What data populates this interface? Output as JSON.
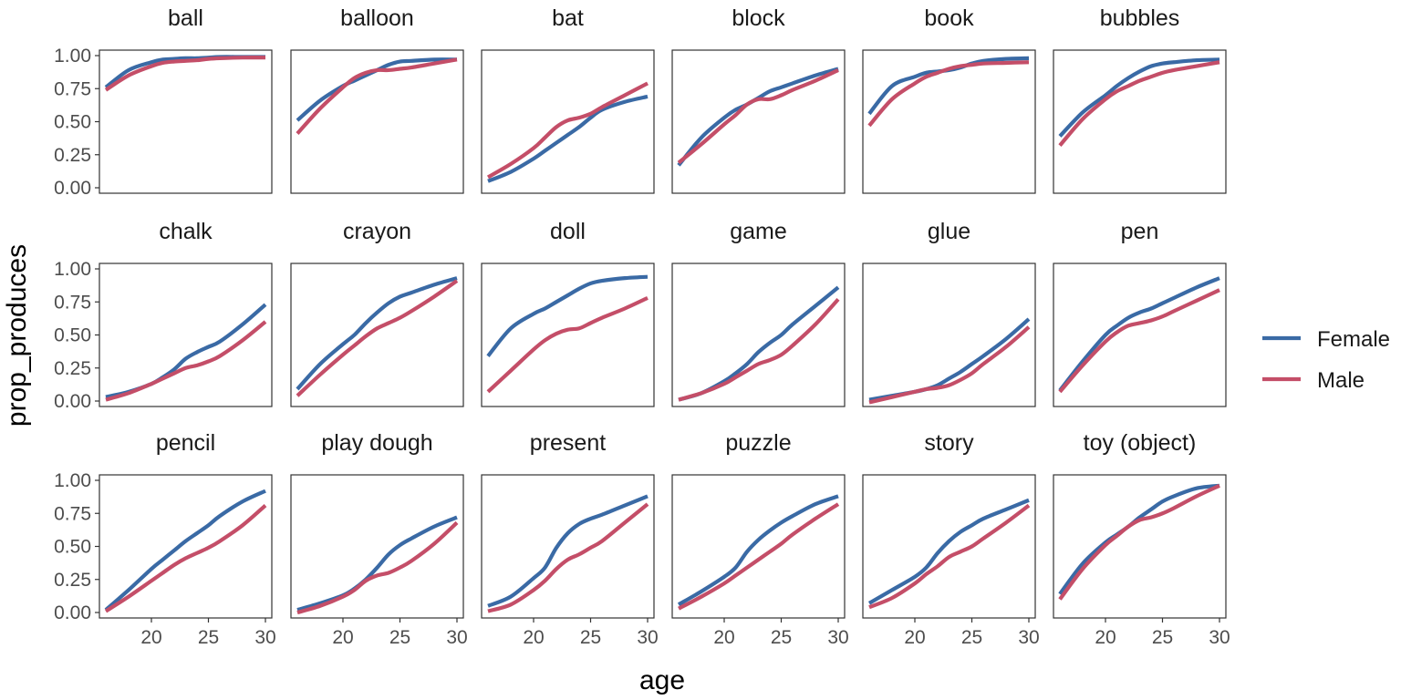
{
  "chart_data": {
    "type": "line",
    "xlabel": "age",
    "ylabel": "prop_produces",
    "xlim": [
      16,
      30
    ],
    "ylim": [
      0,
      1
    ],
    "x_ticks": [
      20,
      25,
      30
    ],
    "y_ticks": [
      0,
      0.25,
      0.5,
      0.75,
      1
    ],
    "y_tick_labels": [
      "0.00",
      "0.25",
      "0.50",
      "0.75",
      "1.00"
    ],
    "grid": false,
    "legend_position": "right",
    "legend": [
      {
        "name": "Female",
        "color": "#3a6aa5"
      },
      {
        "name": "Male",
        "color": "#c44e68"
      }
    ],
    "x": [
      16,
      18,
      20,
      21,
      22,
      23,
      24,
      25,
      26,
      28,
      30
    ],
    "panels": [
      {
        "title": "ball",
        "series": [
          {
            "name": "Female",
            "values": [
              0.76,
              0.89,
              0.95,
              0.97,
              0.975,
              0.98,
              0.98,
              0.985,
              0.99,
              0.99,
              0.99
            ]
          },
          {
            "name": "Male",
            "values": [
              0.74,
              0.85,
              0.92,
              0.945,
              0.955,
              0.96,
              0.965,
              0.975,
              0.98,
              0.985,
              0.985
            ]
          }
        ]
      },
      {
        "title": "balloon",
        "series": [
          {
            "name": "Female",
            "values": [
              0.51,
              0.66,
              0.77,
              0.81,
              0.85,
              0.89,
              0.93,
              0.955,
              0.96,
              0.97,
              0.97
            ]
          },
          {
            "name": "Male",
            "values": [
              0.41,
              0.6,
              0.76,
              0.83,
              0.87,
              0.89,
              0.89,
              0.9,
              0.91,
              0.94,
              0.97
            ]
          }
        ]
      },
      {
        "title": "bat",
        "series": [
          {
            "name": "Female",
            "values": [
              0.05,
              0.12,
              0.22,
              0.28,
              0.34,
              0.4,
              0.46,
              0.53,
              0.59,
              0.65,
              0.69
            ]
          },
          {
            "name": "Male",
            "values": [
              0.08,
              0.18,
              0.3,
              0.38,
              0.46,
              0.51,
              0.53,
              0.56,
              0.61,
              0.7,
              0.79
            ]
          }
        ]
      },
      {
        "title": "block",
        "series": [
          {
            "name": "Female",
            "values": [
              0.17,
              0.38,
              0.53,
              0.59,
              0.63,
              0.68,
              0.73,
              0.76,
              0.79,
              0.85,
              0.9
            ]
          },
          {
            "name": "Male",
            "values": [
              0.19,
              0.33,
              0.48,
              0.55,
              0.63,
              0.67,
              0.67,
              0.7,
              0.74,
              0.81,
              0.89
            ]
          }
        ]
      },
      {
        "title": "book",
        "series": [
          {
            "name": "Female",
            "values": [
              0.56,
              0.77,
              0.84,
              0.87,
              0.88,
              0.89,
              0.91,
              0.94,
              0.96,
              0.975,
              0.98
            ]
          },
          {
            "name": "Male",
            "values": [
              0.47,
              0.67,
              0.79,
              0.84,
              0.87,
              0.9,
              0.92,
              0.93,
              0.94,
              0.945,
              0.95
            ]
          }
        ]
      },
      {
        "title": "bubbles",
        "series": [
          {
            "name": "Female",
            "values": [
              0.39,
              0.57,
              0.7,
              0.77,
              0.83,
              0.88,
              0.92,
              0.94,
              0.95,
              0.965,
              0.97
            ]
          },
          {
            "name": "Male",
            "values": [
              0.32,
              0.52,
              0.67,
              0.73,
              0.77,
              0.81,
              0.84,
              0.87,
              0.89,
              0.92,
              0.95
            ]
          }
        ]
      },
      {
        "title": "chalk",
        "series": [
          {
            "name": "Female",
            "values": [
              0.03,
              0.07,
              0.13,
              0.18,
              0.24,
              0.32,
              0.37,
              0.41,
              0.45,
              0.58,
              0.73
            ]
          },
          {
            "name": "Male",
            "values": [
              0.01,
              0.06,
              0.13,
              0.17,
              0.21,
              0.25,
              0.27,
              0.3,
              0.34,
              0.46,
              0.6
            ]
          }
        ]
      },
      {
        "title": "crayon",
        "series": [
          {
            "name": "Female",
            "values": [
              0.09,
              0.28,
              0.43,
              0.5,
              0.59,
              0.67,
              0.74,
              0.79,
              0.82,
              0.88,
              0.93
            ]
          },
          {
            "name": "Male",
            "values": [
              0.04,
              0.2,
              0.35,
              0.42,
              0.49,
              0.55,
              0.59,
              0.63,
              0.68,
              0.79,
              0.91
            ]
          }
        ]
      },
      {
        "title": "doll",
        "series": [
          {
            "name": "Female",
            "values": [
              0.34,
              0.55,
              0.66,
              0.7,
              0.75,
              0.8,
              0.85,
              0.89,
              0.91,
              0.93,
              0.94
            ]
          },
          {
            "name": "Male",
            "values": [
              0.07,
              0.23,
              0.39,
              0.46,
              0.51,
              0.54,
              0.55,
              0.59,
              0.63,
              0.7,
              0.78
            ]
          }
        ]
      },
      {
        "title": "game",
        "series": [
          {
            "name": "Female",
            "values": [
              0.01,
              0.06,
              0.15,
              0.21,
              0.28,
              0.37,
              0.44,
              0.5,
              0.58,
              0.72,
              0.86
            ]
          },
          {
            "name": "Male",
            "values": [
              0.01,
              0.06,
              0.13,
              0.18,
              0.23,
              0.28,
              0.31,
              0.35,
              0.42,
              0.58,
              0.77
            ]
          }
        ]
      },
      {
        "title": "glue",
        "series": [
          {
            "name": "Female",
            "values": [
              0.01,
              0.04,
              0.07,
              0.09,
              0.12,
              0.17,
              0.22,
              0.28,
              0.34,
              0.47,
              0.62
            ]
          },
          {
            "name": "Male",
            "values": [
              -0.01,
              0.03,
              0.07,
              0.09,
              0.1,
              0.12,
              0.16,
              0.21,
              0.28,
              0.41,
              0.56
            ]
          }
        ]
      },
      {
        "title": "pen",
        "series": [
          {
            "name": "Female",
            "values": [
              0.08,
              0.3,
              0.5,
              0.57,
              0.63,
              0.67,
              0.7,
              0.74,
              0.78,
              0.86,
              0.93
            ]
          },
          {
            "name": "Male",
            "values": [
              0.07,
              0.27,
              0.45,
              0.52,
              0.57,
              0.59,
              0.61,
              0.64,
              0.68,
              0.76,
              0.84
            ]
          }
        ]
      },
      {
        "title": "pencil",
        "series": [
          {
            "name": "Female",
            "values": [
              0.02,
              0.17,
              0.33,
              0.4,
              0.47,
              0.54,
              0.6,
              0.66,
              0.73,
              0.84,
              0.92
            ]
          },
          {
            "name": "Male",
            "values": [
              0.01,
              0.12,
              0.24,
              0.3,
              0.36,
              0.41,
              0.45,
              0.49,
              0.54,
              0.66,
              0.81
            ]
          }
        ]
      },
      {
        "title": "play dough",
        "series": [
          {
            "name": "Female",
            "values": [
              0.02,
              0.07,
              0.13,
              0.18,
              0.25,
              0.34,
              0.44,
              0.51,
              0.56,
              0.65,
              0.72
            ]
          },
          {
            "name": "Male",
            "values": [
              0.0,
              0.05,
              0.12,
              0.17,
              0.24,
              0.28,
              0.3,
              0.34,
              0.39,
              0.52,
              0.68
            ]
          }
        ]
      },
      {
        "title": "present",
        "series": [
          {
            "name": "Female",
            "values": [
              0.05,
              0.12,
              0.26,
              0.34,
              0.49,
              0.6,
              0.67,
              0.71,
              0.74,
              0.81,
              0.88
            ]
          },
          {
            "name": "Male",
            "values": [
              0.01,
              0.06,
              0.17,
              0.24,
              0.33,
              0.4,
              0.44,
              0.49,
              0.54,
              0.68,
              0.82
            ]
          }
        ]
      },
      {
        "title": "puzzle",
        "series": [
          {
            "name": "Female",
            "values": [
              0.06,
              0.16,
              0.27,
              0.34,
              0.46,
              0.55,
              0.62,
              0.68,
              0.73,
              0.82,
              0.88
            ]
          },
          {
            "name": "Male",
            "values": [
              0.03,
              0.12,
              0.22,
              0.28,
              0.34,
              0.4,
              0.46,
              0.52,
              0.59,
              0.71,
              0.82
            ]
          }
        ]
      },
      {
        "title": "story",
        "series": [
          {
            "name": "Female",
            "values": [
              0.07,
              0.17,
              0.27,
              0.34,
              0.45,
              0.54,
              0.61,
              0.66,
              0.71,
              0.78,
              0.85
            ]
          },
          {
            "name": "Male",
            "values": [
              0.04,
              0.11,
              0.22,
              0.29,
              0.35,
              0.42,
              0.46,
              0.5,
              0.56,
              0.68,
              0.81
            ]
          }
        ]
      },
      {
        "title": "toy (object)",
        "series": [
          {
            "name": "Female",
            "values": [
              0.14,
              0.37,
              0.53,
              0.59,
              0.65,
              0.72,
              0.78,
              0.84,
              0.88,
              0.94,
              0.96
            ]
          },
          {
            "name": "Male",
            "values": [
              0.1,
              0.33,
              0.51,
              0.58,
              0.65,
              0.7,
              0.72,
              0.75,
              0.79,
              0.88,
              0.96
            ]
          }
        ]
      }
    ]
  }
}
